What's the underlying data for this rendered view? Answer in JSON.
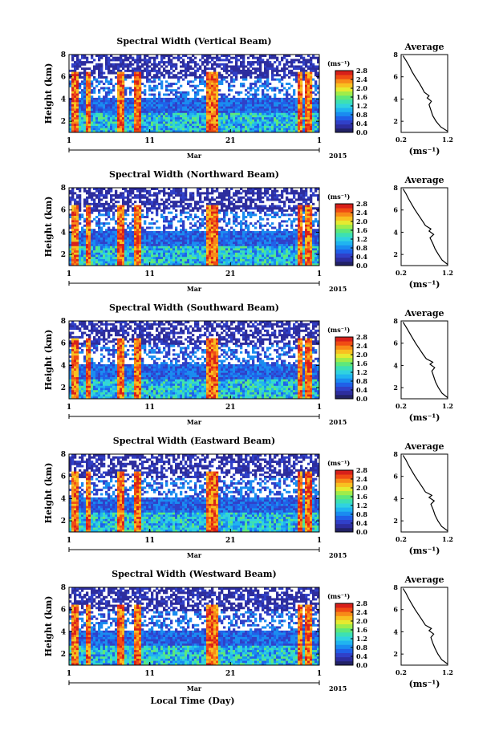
{
  "figure": {
    "xlabel": "Local Time (Day)",
    "month_label": "Mar",
    "year_label": "2015"
  },
  "colorbar": {
    "unit_label": "(ms⁻¹)",
    "ticks": [
      "0.0",
      "0.4",
      "0.8",
      "1.2",
      "1.6",
      "2.0",
      "2.4",
      "2.8"
    ],
    "colors": [
      "#222266",
      "#2d2d9e",
      "#3040c8",
      "#2060e8",
      "#1a8cf0",
      "#20b4f0",
      "#30d2e0",
      "#3ce0b4",
      "#5ee87a",
      "#a0ec4a",
      "#e6ea30",
      "#f8c020",
      "#f88a18",
      "#f04c14",
      "#d8201a"
    ]
  },
  "chart_data": [
    {
      "type": "heatmap",
      "title": "Spectral Width (Vertical Beam)",
      "ylabel": "Height (km)",
      "x_ticks": [
        "1",
        "11",
        "21",
        "1"
      ],
      "y_ticks": [
        "2",
        "4",
        "6",
        "8"
      ],
      "xlim": [
        1,
        32
      ],
      "ylim": [
        1,
        8
      ],
      "colorbar_range": [
        0.0,
        2.8
      ],
      "average_profile": {
        "title": "Average",
        "xlabel": "(ms⁻¹)",
        "x_ticks": [
          "0.2",
          "1.2"
        ],
        "y_ticks": [
          "2",
          "4",
          "6",
          "8"
        ],
        "xlim": [
          0.2,
          1.2
        ],
        "ylim": [
          1,
          8
        ],
        "height": [
          1.1,
          1.5,
          2.0,
          2.5,
          3.0,
          3.5,
          3.8,
          4.1,
          4.3,
          4.6,
          5.0,
          5.5,
          6.0,
          6.5,
          7.0,
          7.5,
          7.9
        ],
        "width": [
          1.2,
          1.05,
          0.95,
          0.88,
          0.84,
          0.8,
          0.85,
          0.76,
          0.8,
          0.7,
          0.65,
          0.58,
          0.5,
          0.43,
          0.37,
          0.3,
          0.24
        ]
      }
    },
    {
      "type": "heatmap",
      "title": "Spectral Width (Northward Beam)",
      "ylabel": "Height (km)",
      "x_ticks": [
        "1",
        "11",
        "21",
        "1"
      ],
      "y_ticks": [
        "2",
        "4",
        "6",
        "8"
      ],
      "xlim": [
        1,
        32
      ],
      "ylim": [
        1,
        8
      ],
      "colorbar_range": [
        0.0,
        2.8
      ],
      "average_profile": {
        "title": "Average",
        "xlabel": "(ms⁻¹)",
        "x_ticks": [
          "0.2",
          "1.2"
        ],
        "y_ticks": [
          "2",
          "4",
          "6",
          "8"
        ],
        "xlim": [
          0.2,
          1.2
        ],
        "ylim": [
          1,
          8
        ],
        "height": [
          1.1,
          1.5,
          2.0,
          2.5,
          3.0,
          3.5,
          3.8,
          4.1,
          4.3,
          4.6,
          5.0,
          5.5,
          6.0,
          6.5,
          7.0,
          7.5,
          7.9
        ],
        "width": [
          1.2,
          1.08,
          1.0,
          0.93,
          0.88,
          0.82,
          0.9,
          0.8,
          0.84,
          0.72,
          0.66,
          0.58,
          0.5,
          0.43,
          0.36,
          0.3,
          0.24
        ]
      }
    },
    {
      "type": "heatmap",
      "title": "Spectral Width (Southward Beam)",
      "ylabel": "Height (km)",
      "x_ticks": [
        "1",
        "11",
        "21",
        "1"
      ],
      "y_ticks": [
        "2",
        "4",
        "6",
        "8"
      ],
      "xlim": [
        1,
        32
      ],
      "ylim": [
        1,
        8
      ],
      "colorbar_range": [
        0.0,
        2.8
      ],
      "average_profile": {
        "title": "Average",
        "xlabel": "(ms⁻¹)",
        "x_ticks": [
          "0.2",
          "1.2"
        ],
        "y_ticks": [
          "2",
          "4",
          "6",
          "8"
        ],
        "xlim": [
          0.2,
          1.2
        ],
        "ylim": [
          1,
          8
        ],
        "height": [
          1.1,
          1.5,
          2.0,
          2.5,
          3.0,
          3.5,
          3.8,
          4.1,
          4.3,
          4.6,
          5.0,
          5.5,
          6.0,
          6.5,
          7.0,
          7.5,
          7.9
        ],
        "width": [
          1.2,
          1.08,
          1.0,
          0.94,
          0.9,
          0.86,
          0.92,
          0.82,
          0.88,
          0.74,
          0.67,
          0.59,
          0.51,
          0.44,
          0.37,
          0.3,
          0.24
        ]
      }
    },
    {
      "type": "heatmap",
      "title": "Spectral Width (Eastward Beam)",
      "ylabel": "Height (km)",
      "x_ticks": [
        "1",
        "11",
        "21",
        "1"
      ],
      "y_ticks": [
        "2",
        "4",
        "6",
        "8"
      ],
      "xlim": [
        1,
        32
      ],
      "ylim": [
        1,
        8
      ],
      "colorbar_range": [
        0.0,
        2.8
      ],
      "average_profile": {
        "title": "Average",
        "xlabel": "(ms⁻¹)",
        "x_ticks": [
          "0.2",
          "1.2"
        ],
        "y_ticks": [
          "2",
          "4",
          "6",
          "8"
        ],
        "xlim": [
          0.2,
          1.2
        ],
        "ylim": [
          1,
          8
        ],
        "height": [
          1.1,
          1.5,
          2.0,
          2.5,
          3.0,
          3.5,
          3.8,
          4.1,
          4.3,
          4.6,
          5.0,
          5.5,
          6.0,
          6.5,
          7.0,
          7.5,
          7.9
        ],
        "width": [
          1.2,
          1.07,
          0.99,
          0.93,
          0.89,
          0.84,
          0.91,
          0.8,
          0.86,
          0.72,
          0.66,
          0.58,
          0.5,
          0.43,
          0.36,
          0.3,
          0.24
        ]
      }
    },
    {
      "type": "heatmap",
      "title": "Spectral Width (Westward Beam)",
      "ylabel": "Height (km)",
      "x_ticks": [
        "1",
        "11",
        "21",
        "1"
      ],
      "y_ticks": [
        "2",
        "4",
        "6",
        "8"
      ],
      "xlim": [
        1,
        32
      ],
      "ylim": [
        1,
        8
      ],
      "colorbar_range": [
        0.0,
        2.8
      ],
      "average_profile": {
        "title": "Average",
        "xlabel": "(ms⁻¹)",
        "x_ticks": [
          "0.2",
          "1.2"
        ],
        "y_ticks": [
          "2",
          "4",
          "6",
          "8"
        ],
        "xlim": [
          0.2,
          1.2
        ],
        "ylim": [
          1,
          8
        ],
        "height": [
          1.1,
          1.5,
          2.0,
          2.5,
          3.0,
          3.5,
          3.8,
          4.1,
          4.3,
          4.6,
          5.0,
          5.5,
          6.0,
          6.5,
          7.0,
          7.5,
          7.9
        ],
        "width": [
          1.2,
          1.07,
          0.99,
          0.93,
          0.88,
          0.84,
          0.9,
          0.8,
          0.85,
          0.72,
          0.66,
          0.58,
          0.5,
          0.43,
          0.36,
          0.3,
          0.24
        ]
      }
    }
  ]
}
